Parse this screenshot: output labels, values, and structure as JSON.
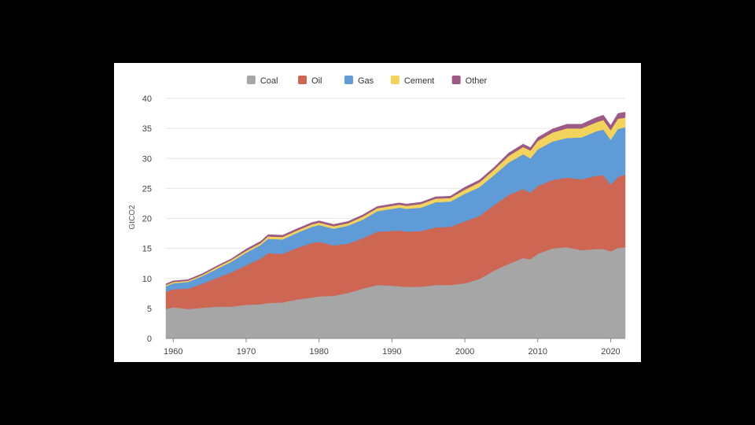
{
  "chart_data": {
    "type": "area",
    "stacked": true,
    "ylabel": "GtCO2",
    "xlabel": "",
    "xlim": [
      1959,
      2022
    ],
    "ylim": [
      0,
      40
    ],
    "xticks": [
      1960,
      1970,
      1980,
      1990,
      2000,
      2010,
      2020
    ],
    "yticks": [
      0,
      5,
      10,
      15,
      20,
      25,
      30,
      35,
      40
    ],
    "grid": "horizontal",
    "legend_position": "top-center",
    "x": [
      1959,
      1960,
      1962,
      1964,
      1966,
      1968,
      1970,
      1972,
      1973,
      1975,
      1977,
      1979,
      1980,
      1982,
      1984,
      1986,
      1988,
      1990,
      1991,
      1992,
      1994,
      1996,
      1998,
      2000,
      2002,
      2004,
      2006,
      2008,
      2009,
      2010,
      2012,
      2014,
      2016,
      2018,
      2019,
      2020,
      2021,
      2022
    ],
    "series": [
      {
        "name": "Coal",
        "color": "#a6a6a6",
        "values": [
          4.9,
          5.2,
          4.9,
          5.1,
          5.3,
          5.3,
          5.6,
          5.7,
          5.9,
          6.0,
          6.5,
          6.8,
          7.0,
          7.1,
          7.6,
          8.3,
          8.9,
          8.8,
          8.7,
          8.6,
          8.6,
          8.9,
          8.9,
          9.2,
          9.9,
          11.3,
          12.4,
          13.4,
          13.2,
          14.1,
          15.0,
          15.2,
          14.7,
          14.9,
          14.9,
          14.5,
          15.1,
          15.2
        ]
      },
      {
        "name": "Oil",
        "color": "#cd6652",
        "values": [
          2.9,
          3.0,
          3.4,
          4.0,
          4.8,
          5.7,
          6.6,
          7.6,
          8.3,
          8.1,
          8.6,
          9.1,
          9.1,
          8.4,
          8.2,
          8.4,
          8.9,
          9.1,
          9.3,
          9.2,
          9.3,
          9.6,
          9.7,
          10.3,
          10.5,
          10.9,
          11.5,
          11.5,
          11.1,
          11.3,
          11.4,
          11.6,
          11.8,
          12.2,
          12.3,
          11.1,
          11.8,
          12.1
        ]
      },
      {
        "name": "Gas",
        "color": "#5f9bd6",
        "values": [
          0.9,
          1.0,
          1.1,
          1.3,
          1.5,
          1.8,
          2.1,
          2.3,
          2.4,
          2.4,
          2.5,
          2.7,
          2.8,
          2.8,
          3.0,
          3.1,
          3.4,
          3.7,
          3.8,
          3.8,
          3.9,
          4.2,
          4.2,
          4.6,
          4.8,
          5.0,
          5.4,
          5.8,
          5.7,
          6.1,
          6.4,
          6.6,
          7.0,
          7.4,
          7.6,
          7.5,
          8.0,
          7.9
        ]
      },
      {
        "name": "Cement",
        "color": "#f2d35c",
        "values": [
          0.2,
          0.2,
          0.2,
          0.2,
          0.3,
          0.3,
          0.3,
          0.3,
          0.4,
          0.4,
          0.4,
          0.4,
          0.4,
          0.4,
          0.4,
          0.5,
          0.5,
          0.5,
          0.5,
          0.5,
          0.6,
          0.6,
          0.6,
          0.7,
          0.8,
          0.9,
          1.1,
          1.2,
          1.3,
          1.4,
          1.5,
          1.6,
          1.5,
          1.5,
          1.6,
          1.6,
          1.7,
          1.6
        ]
      },
      {
        "name": "Other",
        "color": "#9c5a85",
        "values": [
          0.2,
          0.2,
          0.2,
          0.2,
          0.2,
          0.2,
          0.3,
          0.3,
          0.3,
          0.3,
          0.3,
          0.3,
          0.3,
          0.3,
          0.3,
          0.3,
          0.3,
          0.3,
          0.3,
          0.3,
          0.3,
          0.3,
          0.3,
          0.4,
          0.4,
          0.4,
          0.5,
          0.5,
          0.5,
          0.6,
          0.6,
          0.7,
          0.7,
          0.8,
          0.8,
          0.8,
          0.9,
          0.9
        ]
      }
    ]
  }
}
